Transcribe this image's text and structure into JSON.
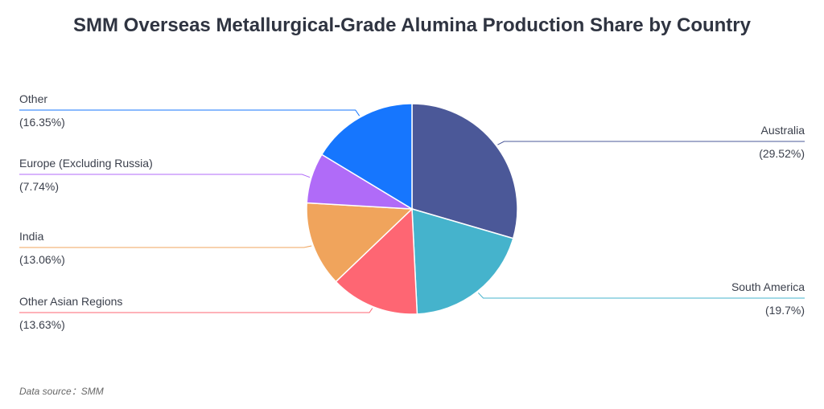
{
  "chart_data": {
    "type": "pie",
    "title": "SMM Overseas Metallurgical-Grade Alumina Production Share by Country",
    "slices": [
      {
        "name": "Australia",
        "value": 29.52,
        "label_pct": "(29.52%)",
        "color": "#4b5898"
      },
      {
        "name": "South America",
        "value": 19.7,
        "label_pct": "(19.7%)",
        "color": "#45b3cc"
      },
      {
        "name": "Other Asian Regions",
        "value": 13.63,
        "label_pct": "(13.63%)",
        "color": "#fe6673"
      },
      {
        "name": "India",
        "value": 13.06,
        "label_pct": "(13.06%)",
        "color": "#f0a45c"
      },
      {
        "name": "Europe (Excluding Russia)",
        "value": 7.74,
        "label_pct": "(7.74%)",
        "color": "#b06bf8"
      },
      {
        "name": "Other",
        "value": 16.35,
        "label_pct": "(16.35%)",
        "color": "#1676fe"
      }
    ],
    "source": "Data source：SMM"
  }
}
